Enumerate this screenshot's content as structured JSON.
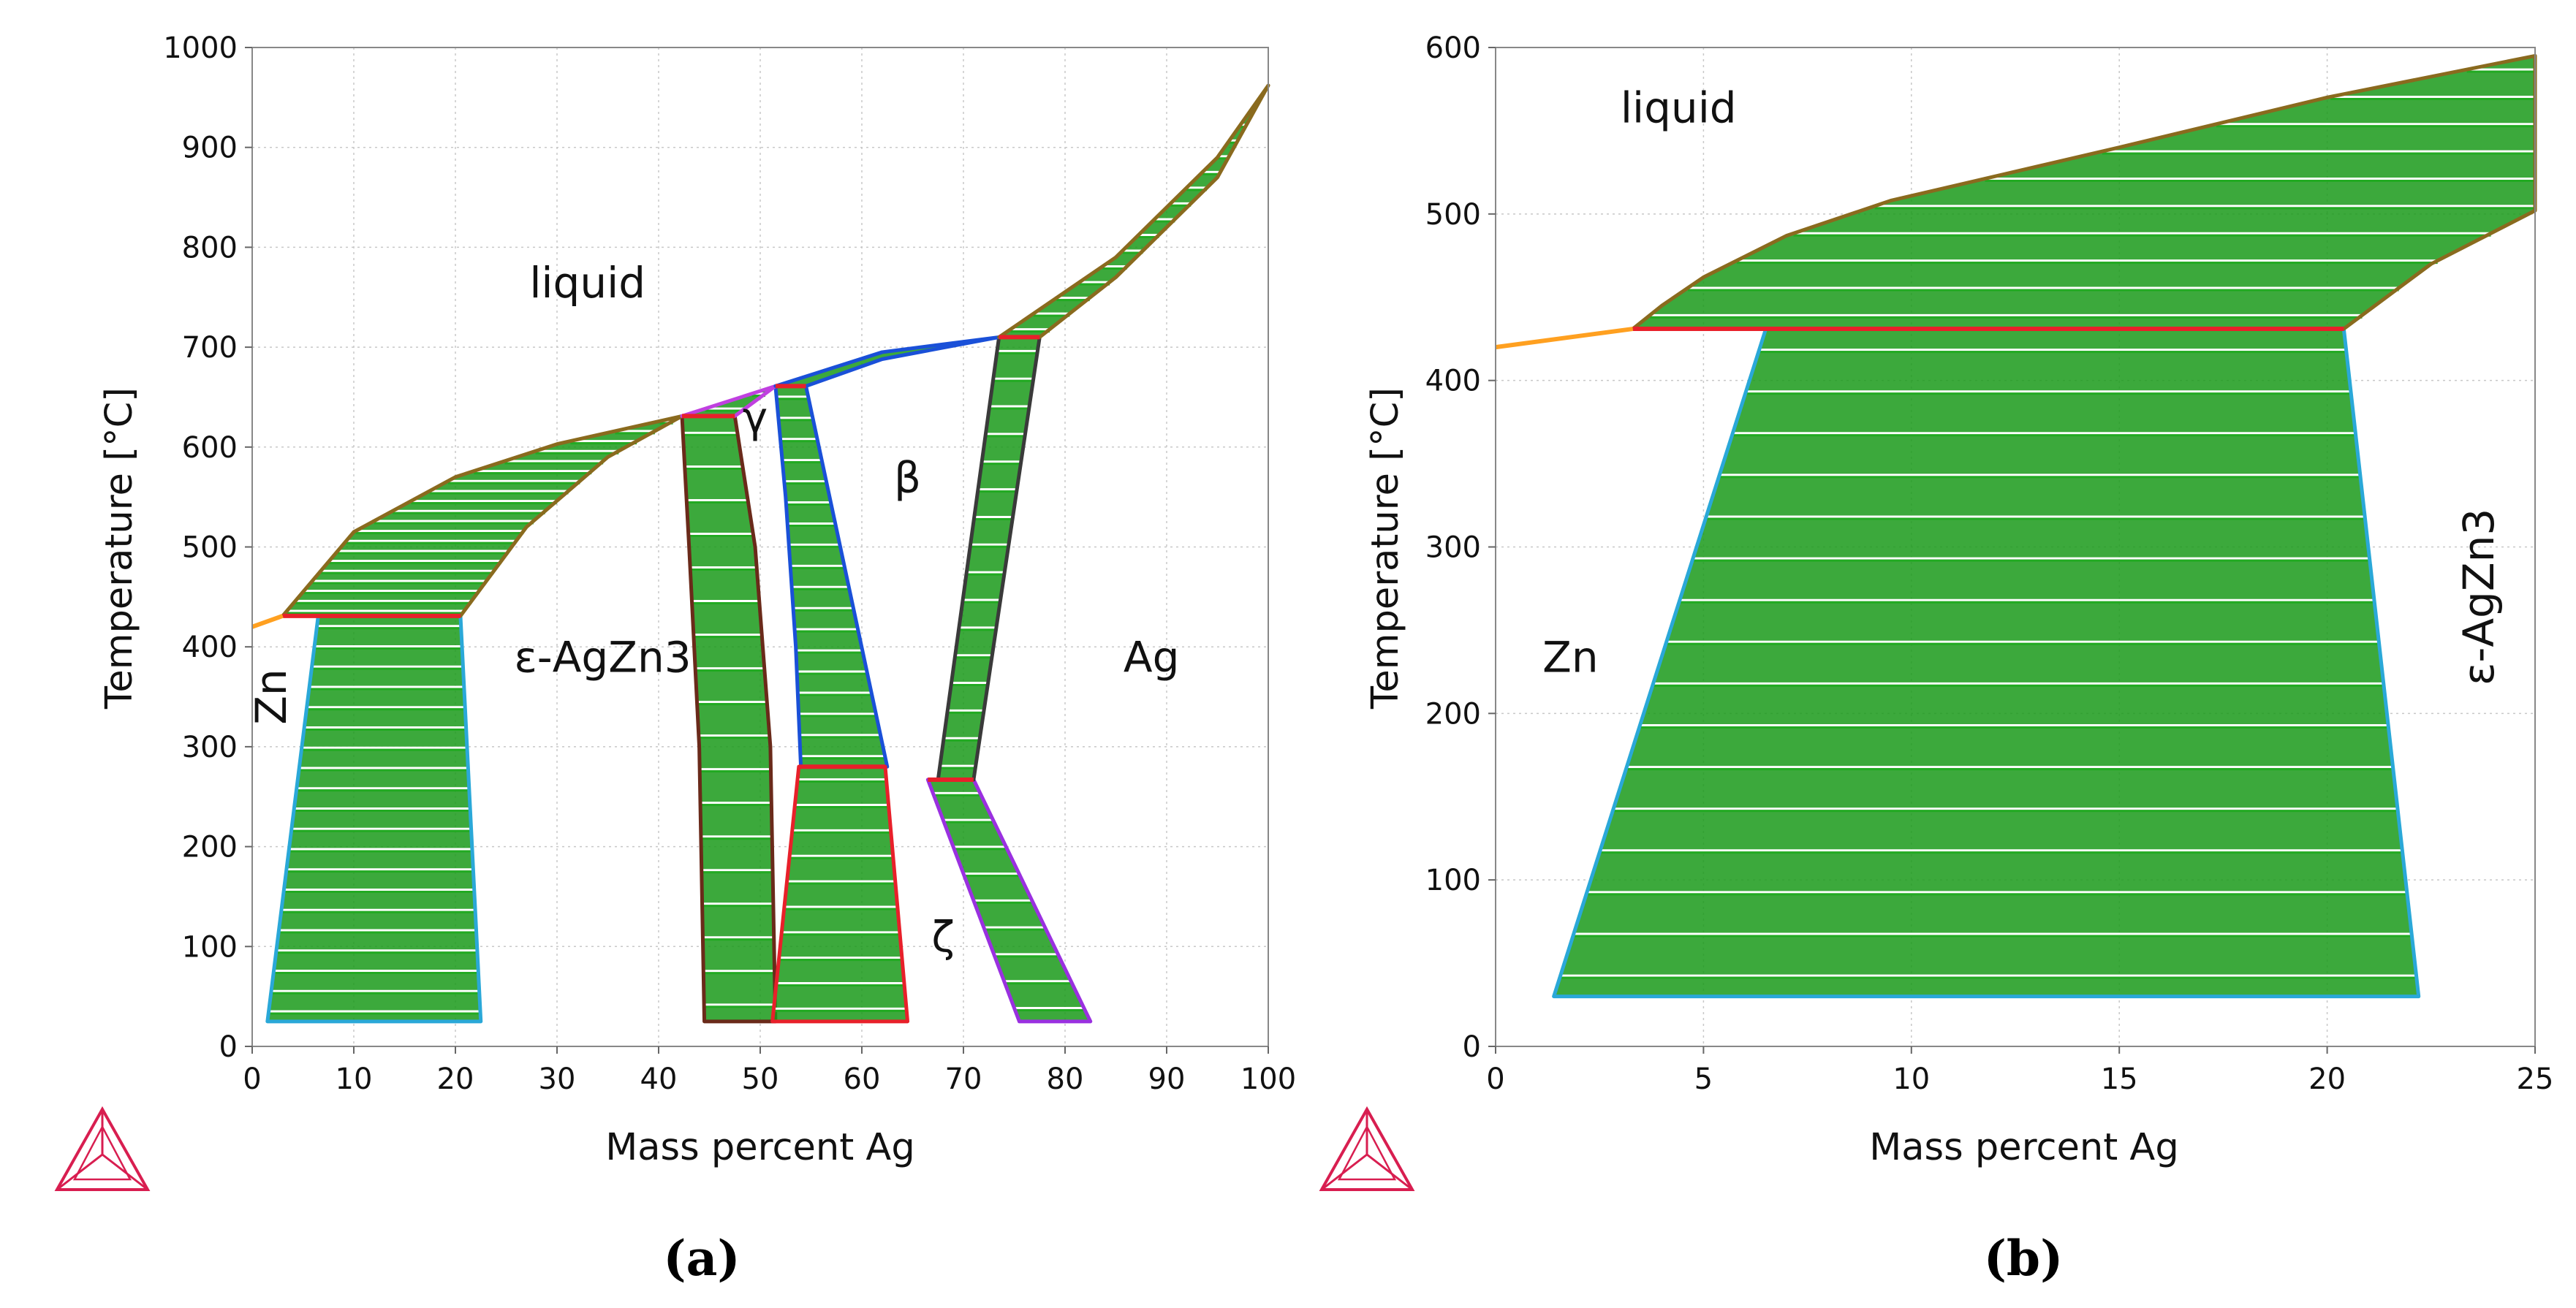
{
  "colors": {
    "tie_line": "#22aa22",
    "two_phase_fill": "#1a9a1a",
    "liquidus": "#8a6a1e",
    "invariant": "#e8202a",
    "zn_solvus": "#2aa8d8",
    "eps_boundary": "#6a2a1a",
    "gamma_boundary": "#c040e0",
    "beta_boundary": "#1a50d8",
    "ag_boundary": "#3a3a3a",
    "zeta_boundary": "#9a30e0",
    "zn_melt": "#ffa020",
    "grid": "#c8c8c8",
    "logo": "#d81e50"
  },
  "chart_data": [
    {
      "id": "a",
      "type": "phase-diagram",
      "panel_label": "(a)",
      "xlabel": "Mass percent Ag",
      "ylabel": "Temperature [°C]",
      "xlim": [
        0,
        100
      ],
      "ylim": [
        0,
        1000
      ],
      "xticks": [
        0,
        10,
        20,
        30,
        40,
        50,
        60,
        70,
        80,
        90,
        100
      ],
      "yticks": [
        0,
        100,
        200,
        300,
        400,
        500,
        600,
        700,
        800,
        900,
        1000
      ],
      "grid": true,
      "regions": [
        {
          "name": "Zn + ε-AgZn3",
          "color": "zn_solvus",
          "tie_lines": 20,
          "points": [
            [
              1.5,
              25
            ],
            [
              6.5,
              431
            ],
            [
              20.5,
              431
            ],
            [
              22.5,
              25
            ]
          ]
        },
        {
          "name": "ε + γ",
          "color": "eps_boundary",
          "tie_lines": 18,
          "points": [
            [
              44.5,
              25
            ],
            [
              44,
              300
            ],
            [
              43,
              500
            ],
            [
              42.3,
              631
            ],
            [
              47.5,
              631
            ],
            [
              49.5,
              500
            ],
            [
              51,
              300
            ],
            [
              51.5,
              25
            ]
          ]
        },
        {
          "name": "γ + β",
          "color": "beta_boundary",
          "tie_lines": 18,
          "points": [
            [
              51.5,
              661
            ],
            [
              54.5,
              661
            ],
            [
              62.5,
              280
            ],
            [
              54,
              280
            ],
            [
              53.5,
              400
            ],
            [
              52.5,
              550
            ]
          ]
        },
        {
          "name": "γ + ζ",
          "color": "invariant",
          "tie_lines": 10,
          "points": [
            [
              53.8,
              280
            ],
            [
              62.3,
              280
            ],
            [
              64.5,
              25
            ],
            [
              51.2,
              25
            ]
          ]
        },
        {
          "name": "ζ + Ag",
          "color": "zeta_boundary",
          "tie_lines": 9,
          "points": [
            [
              66.5,
              267
            ],
            [
              71,
              267
            ],
            [
              82.5,
              25
            ],
            [
              75.5,
              25
            ]
          ]
        },
        {
          "name": "β + Ag",
          "color": "ag_boundary",
          "tie_lines": 16,
          "points": [
            [
              73.5,
              710
            ],
            [
              77.5,
              710
            ],
            [
              71,
              267
            ],
            [
              67.5,
              267
            ]
          ]
        },
        {
          "name": "liquid + ε (Zn side)",
          "color": "liquidus",
          "tie_lines": 20,
          "points": [
            [
              3,
              431
            ],
            [
              10,
              515
            ],
            [
              20,
              570
            ],
            [
              30,
              603
            ],
            [
              42.3,
              631
            ],
            [
              35,
              590
            ],
            [
              27,
              520
            ],
            [
              20.5,
              431
            ]
          ]
        },
        {
          "name": "liquid + γ",
          "color": "gamma_boundary",
          "tie_lines": 2,
          "points": [
            [
              42.3,
              631
            ],
            [
              51.5,
              661
            ],
            [
              47.5,
              631
            ]
          ]
        },
        {
          "name": "liquid + β",
          "color": "beta_boundary",
          "tie_lines": 0,
          "points": [
            [
              51.5,
              661
            ],
            [
              62,
              695
            ],
            [
              73.5,
              710
            ],
            [
              62,
              688
            ],
            [
              54.5,
              661
            ]
          ]
        },
        {
          "name": "liquid + Ag",
          "color": "liquidus",
          "tie_lines": 16,
          "points": [
            [
              73.5,
              710
            ],
            [
              85,
              790
            ],
            [
              95,
              890
            ],
            [
              100,
              962
            ],
            [
              95,
              870
            ],
            [
              85,
              770
            ],
            [
              77.5,
              710
            ]
          ]
        }
      ],
      "invariant_lines": [
        {
          "x": [
            3,
            20.5
          ],
          "y": 431
        },
        {
          "x": [
            42.3,
            47.5
          ],
          "y": 631
        },
        {
          "x": [
            51.5,
            54.5
          ],
          "y": 661
        },
        {
          "x": [
            73.5,
            77.5
          ],
          "y": 710
        },
        {
          "x": [
            53.8,
            62.3
          ],
          "y": 280
        },
        {
          "x": [
            66.5,
            71
          ],
          "y": 267
        }
      ],
      "zn_melt_line": {
        "points": [
          [
            0,
            420
          ],
          [
            3,
            431
          ]
        ]
      },
      "phase_labels": [
        {
          "text": "liquid",
          "x": 33,
          "y": 750
        },
        {
          "text": "γ",
          "x": 49.5,
          "y": 615
        },
        {
          "text": "β",
          "x": 64.5,
          "y": 555
        },
        {
          "text": "Zn",
          "x": 3.3,
          "y": 350,
          "rotate": -90
        },
        {
          "text": "ε-AgZn3",
          "x": 34.5,
          "y": 375
        },
        {
          "text": "Ag",
          "x": 88.5,
          "y": 375
        },
        {
          "text": "ζ",
          "x": 68,
          "y": 95
        }
      ]
    },
    {
      "id": "b",
      "type": "phase-diagram",
      "panel_label": "(b)",
      "xlabel": "Mass percent Ag",
      "ylabel": "Temperature [°C]",
      "xlim": [
        0,
        25
      ],
      "ylim": [
        0,
        600
      ],
      "xticks": [
        0,
        5,
        10,
        15,
        20,
        25
      ],
      "yticks": [
        0,
        100,
        200,
        300,
        400,
        500,
        600
      ],
      "grid": true,
      "regions": [
        {
          "name": "Zn + ε-AgZn3",
          "color": "zn_solvus",
          "tie_lines": 16,
          "points": [
            [
              1.4,
              30
            ],
            [
              6.5,
              431
            ],
            [
              20.4,
              431
            ],
            [
              22.2,
              30
            ]
          ]
        },
        {
          "name": "liquid + ε",
          "color": "liquidus",
          "tie_lines": 10,
          "points": [
            [
              3.3,
              431
            ],
            [
              4,
              445
            ],
            [
              5,
              462
            ],
            [
              7,
              487
            ],
            [
              9.5,
              508
            ],
            [
              15,
              540
            ],
            [
              20,
              570
            ],
            [
              25,
              595
            ],
            [
              25,
              502
            ],
            [
              22.5,
              470
            ],
            [
              20.4,
              431
            ]
          ]
        }
      ],
      "invariant_lines": [
        {
          "x": [
            3.3,
            20.4
          ],
          "y": 431
        }
      ],
      "zn_melt_line": {
        "points": [
          [
            0,
            420
          ],
          [
            3.3,
            431
          ]
        ]
      },
      "phase_labels": [
        {
          "text": "liquid",
          "x": 4.4,
          "y": 555
        },
        {
          "text": "Zn",
          "x": 1.8,
          "y": 225
        },
        {
          "text": "ε-AgZn3",
          "x": 24,
          "y": 270,
          "rotate": -90
        }
      ]
    }
  ]
}
